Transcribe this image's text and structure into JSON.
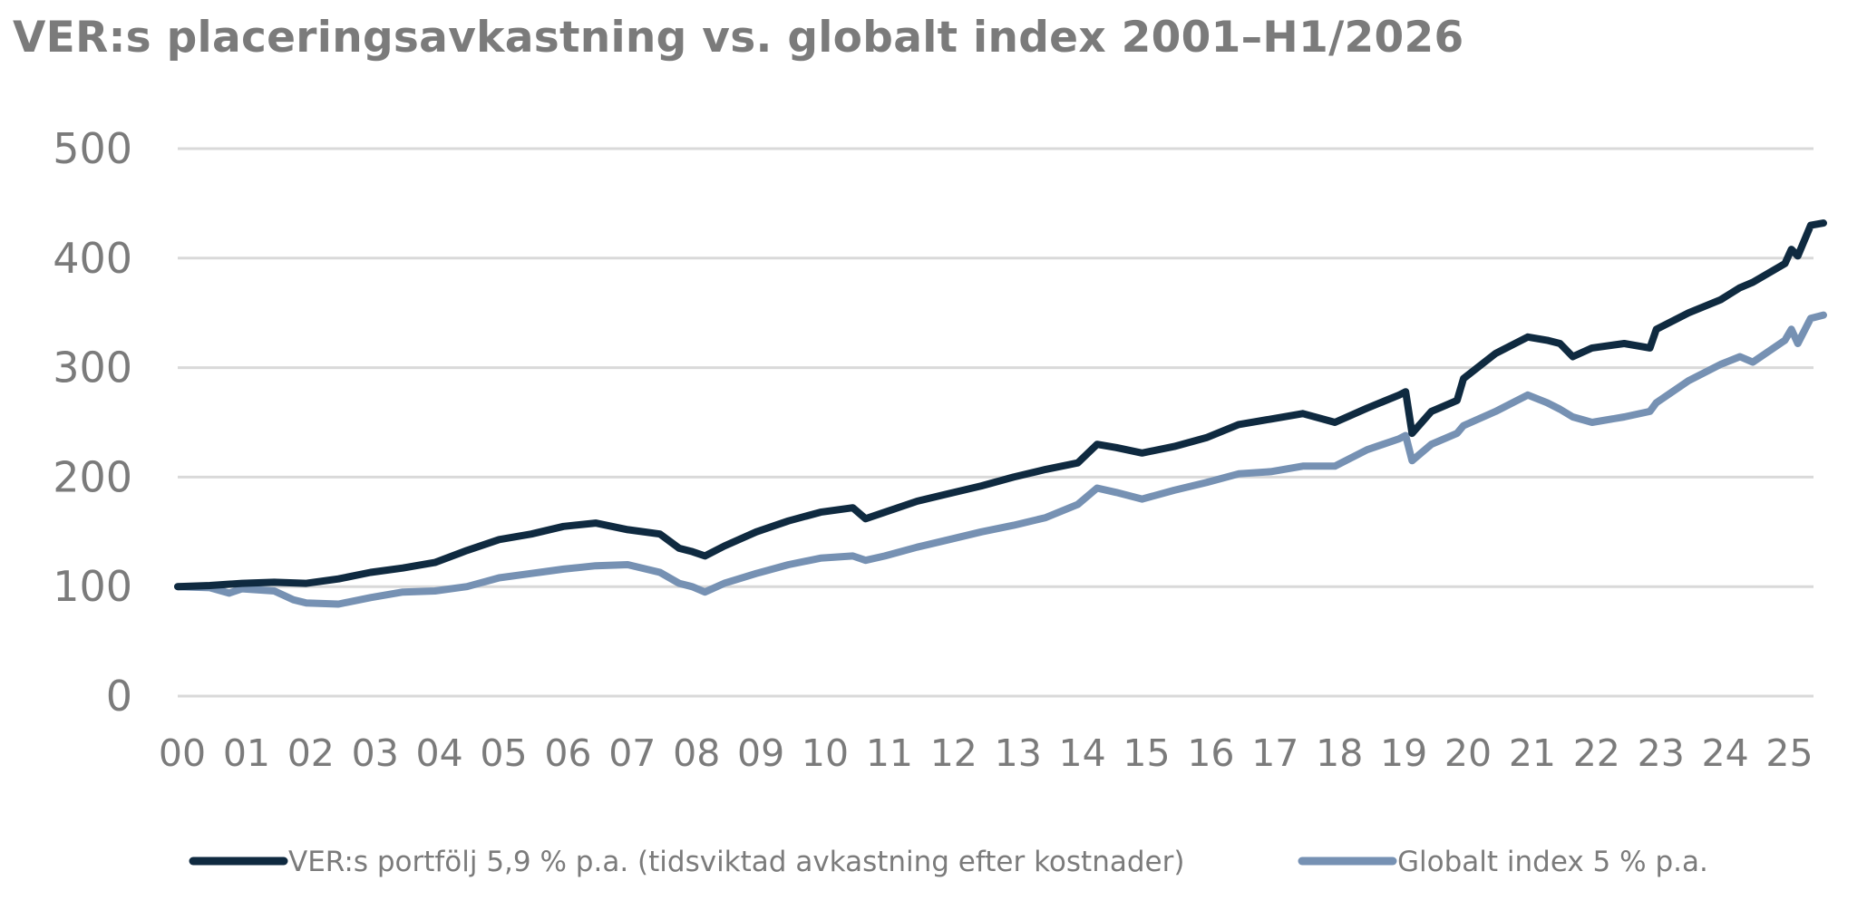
{
  "chart_data": {
    "type": "line",
    "title": "VER:s placeringsavkastning vs. globalt index 2001–H1/2026",
    "xlabel": "",
    "ylabel": "",
    "ylim": [
      0,
      500
    ],
    "yticks": [
      "0",
      "100",
      "200",
      "300",
      "400",
      "500"
    ],
    "xtick_labels": [
      "00",
      "01",
      "02",
      "03",
      "04",
      "05",
      "06",
      "07",
      "08",
      "09",
      "10",
      "11",
      "12",
      "13",
      "14",
      "15",
      "16",
      "17",
      "18",
      "19",
      "20",
      "21",
      "22",
      "23",
      "24",
      "25"
    ],
    "xlim": [
      0,
      25.6
    ],
    "grid": "horizontal",
    "legend_placement": "bottom",
    "colors": {
      "grid": "#d9d9d9",
      "text": "#7b7b7b"
    },
    "series": [
      {
        "name": "VER:s portfölj 5,9 % p.a. (tidsviktad avkastning efter kostnader)",
        "color": "#0f2a40",
        "x": [
          0,
          0.5,
          1.0,
          1.5,
          2.0,
          2.5,
          3.0,
          3.5,
          4.0,
          4.5,
          5.0,
          5.5,
          6.0,
          6.5,
          7.0,
          7.5,
          7.8,
          8.0,
          8.2,
          8.5,
          9.0,
          9.5,
          10.0,
          10.5,
          10.7,
          11.0,
          11.5,
          12.0,
          12.5,
          13.0,
          13.5,
          14.0,
          14.3,
          14.6,
          15.0,
          15.5,
          16.0,
          16.5,
          17.0,
          17.5,
          18.0,
          18.5,
          19.0,
          19.1,
          19.2,
          19.5,
          19.9,
          20.0,
          20.5,
          21.0,
          21.3,
          21.5,
          21.7,
          22.0,
          22.5,
          22.9,
          23.0,
          23.5,
          24.0,
          24.3,
          24.5,
          25.0,
          25.1,
          25.2,
          25.4,
          25.6
        ],
        "values": [
          100,
          101,
          103,
          104,
          103,
          107,
          113,
          117,
          122,
          133,
          143,
          148,
          155,
          158,
          152,
          148,
          135,
          132,
          128,
          137,
          150,
          160,
          168,
          172,
          162,
          168,
          178,
          185,
          192,
          200,
          207,
          213,
          230,
          227,
          222,
          228,
          236,
          248,
          253,
          258,
          250,
          263,
          275,
          278,
          240,
          260,
          270,
          290,
          313,
          328,
          325,
          322,
          310,
          318,
          322,
          318,
          335,
          350,
          362,
          373,
          378,
          395,
          408,
          402,
          430,
          432
        ]
      },
      {
        "name": "Globalt index 5 % p.a.",
        "color": "#7691b3",
        "x": [
          0,
          0.5,
          0.8,
          1.0,
          1.5,
          1.8,
          2.0,
          2.5,
          3.0,
          3.5,
          4.0,
          4.5,
          5.0,
          5.5,
          6.0,
          6.5,
          7.0,
          7.5,
          7.8,
          8.0,
          8.2,
          8.5,
          9.0,
          9.5,
          10.0,
          10.5,
          10.7,
          11.0,
          11.5,
          12.0,
          12.5,
          13.0,
          13.5,
          14.0,
          14.3,
          14.6,
          15.0,
          15.5,
          16.0,
          16.5,
          17.0,
          17.5,
          18.0,
          18.5,
          19.0,
          19.1,
          19.2,
          19.5,
          19.9,
          20.0,
          20.5,
          21.0,
          21.3,
          21.5,
          21.7,
          22.0,
          22.5,
          22.9,
          23.0,
          23.5,
          24.0,
          24.3,
          24.5,
          25.0,
          25.1,
          25.2,
          25.4,
          25.6
        ],
        "values": [
          100,
          99,
          94,
          98,
          96,
          88,
          85,
          84,
          90,
          95,
          96,
          100,
          108,
          112,
          116,
          119,
          120,
          113,
          103,
          100,
          95,
          103,
          112,
          120,
          126,
          128,
          124,
          128,
          136,
          143,
          150,
          156,
          163,
          175,
          190,
          186,
          180,
          188,
          195,
          203,
          205,
          210,
          210,
          225,
          235,
          238,
          215,
          230,
          240,
          247,
          260,
          275,
          268,
          262,
          255,
          250,
          255,
          260,
          268,
          288,
          303,
          310,
          305,
          325,
          335,
          322,
          345,
          348
        ]
      }
    ]
  }
}
